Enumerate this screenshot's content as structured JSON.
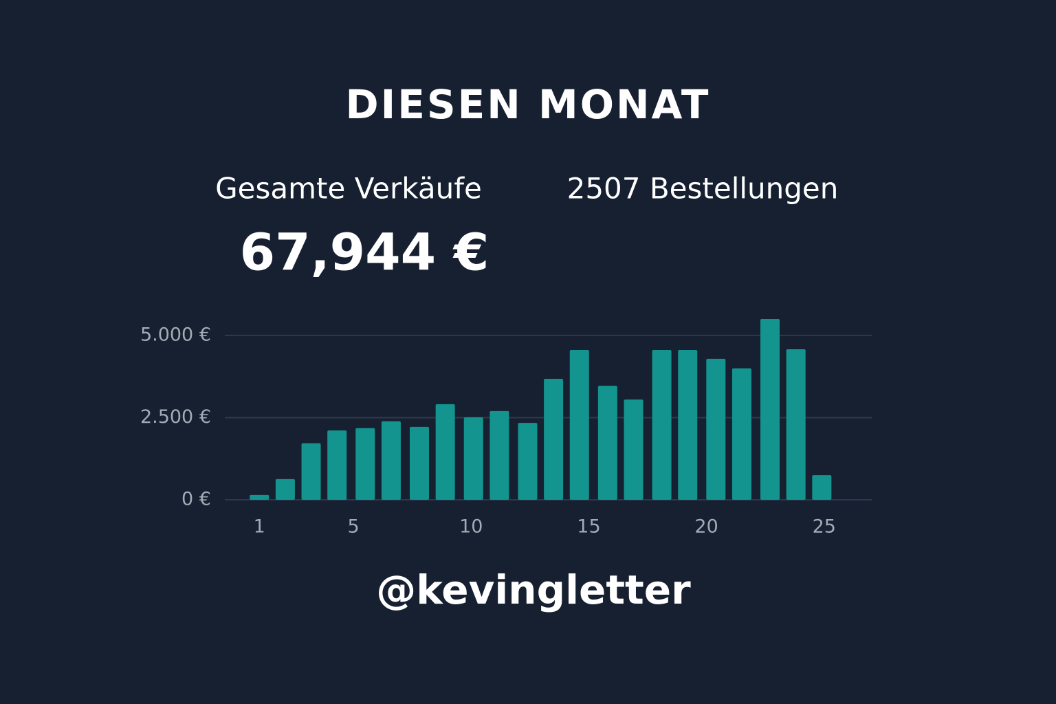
{
  "header": {
    "title": "DIESEN MONAT"
  },
  "stats": {
    "sales_label": "Gesamte Verkäufe",
    "sales_value": "67,944 €",
    "orders": "2507 Bestellungen"
  },
  "chart_data": {
    "type": "bar",
    "x": [
      1.0,
      2.1,
      3.2,
      4.3,
      5.5,
      6.6,
      7.8,
      8.9,
      10.1,
      11.2,
      12.4,
      13.5,
      14.6,
      15.8,
      16.9,
      18.1,
      19.2,
      20.4,
      21.5,
      22.7,
      23.8,
      24.9
    ],
    "values": [
      150,
      630,
      1720,
      2110,
      2180,
      2390,
      2220,
      2910,
      2510,
      2700,
      2340,
      3680,
      4560,
      3470,
      3050,
      4560,
      4560,
      4290,
      4000,
      5500,
      4580,
      750
    ],
    "color": "#13948f",
    "xlim": [
      0,
      26
    ],
    "xticks": [
      1,
      5,
      10,
      15,
      20,
      25
    ],
    "ylim": [
      0,
      5500
    ],
    "yticks": [
      {
        "value": 0,
        "label": "0 €"
      },
      {
        "value": 2500,
        "label": "2.500 €"
      },
      {
        "value": 5000,
        "label": "5.000 €"
      }
    ],
    "grid": true
  },
  "footer": {
    "handle": "@kevingletter"
  }
}
